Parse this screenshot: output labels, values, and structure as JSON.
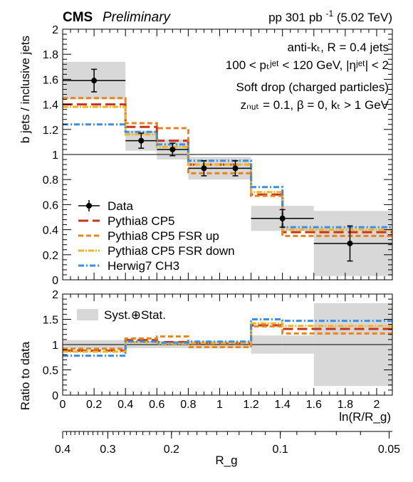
{
  "header": {
    "experiment": "CMS",
    "status": "Preliminary",
    "lumi_prefix": "pp 301 pb",
    "lumi_sup": "-1",
    "lumi_suffix": " (5.02 TeV)"
  },
  "annotations": {
    "jet_def": "anti-kₜ, R = 0.4 jets",
    "pt_cut": "100 < pₜʲᵉᵗ < 120 GeV, |ηʲᵉᵗ| < 2",
    "softdrop_title": "Soft drop (charged particles)",
    "softdrop_params": "zₙᵤₜ = 0.1, β = 0, kₜ > 1 GeV"
  },
  "styles": {
    "data": {
      "color": "#000000"
    },
    "cp5": {
      "color": "#c8341a",
      "dash": "14,6"
    },
    "fsr_up": {
      "color": "#e8841a",
      "dash": "7,4"
    },
    "fsr_down": {
      "color": "#f0b427",
      "dash": "8,2,2,2"
    },
    "herwig": {
      "color": "#3c8fe0",
      "dash": "8,3,2,3"
    },
    "band": "#d8d8d8"
  },
  "chart_data": [
    {
      "type": "histogram",
      "name": "main",
      "ylabel": "b jets / inclusive jets",
      "xlim": [
        0,
        2.1
      ],
      "ylim": [
        0,
        2
      ],
      "grid": false,
      "legend_position": "bottom-left",
      "x_ticks": [
        0,
        0.2,
        0.4,
        0.6,
        0.8,
        1,
        1.2,
        1.4,
        1.6,
        1.8,
        2
      ],
      "x_tick_labels": [
        "0",
        "0.2",
        "0.4",
        "0.6",
        "0.8",
        "1",
        "1.2",
        "1.4",
        "1.6",
        "1.8",
        "2"
      ],
      "y_ticks": [
        0,
        0.2,
        0.4,
        0.6,
        0.8,
        1,
        1.2,
        1.4,
        1.6,
        1.8,
        2
      ],
      "y_tick_labels": [
        "0",
        "0.2",
        "0.4",
        "0.6",
        "0.8",
        "1",
        "1.2",
        "1.4",
        "1.6",
        "1.8",
        "2"
      ],
      "bin_edges": [
        0,
        0.4,
        0.6,
        0.8,
        1.0,
        1.2,
        1.4,
        1.6,
        2.1
      ],
      "reference_line": 1,
      "data": {
        "name": "Data",
        "bins": [
          {
            "x0": 0,
            "x1": 0.4,
            "x": 0.2,
            "y": 1.59,
            "stat": 0.09,
            "syst": 0.15
          },
          {
            "x0": 0.4,
            "x1": 0.6,
            "x": 0.5,
            "y": 1.11,
            "stat": 0.06,
            "syst": 0.08
          },
          {
            "x0": 0.6,
            "x1": 0.8,
            "x": 0.7,
            "y": 1.04,
            "stat": 0.05,
            "syst": 0.08
          },
          {
            "x0": 0.8,
            "x1": 1.0,
            "x": 0.9,
            "y": 0.89,
            "stat": 0.06,
            "syst": 0.09
          },
          {
            "x0": 1.0,
            "x1": 1.2,
            "x": 1.1,
            "y": 0.89,
            "stat": 0.06,
            "syst": 0.09
          },
          {
            "x0": 1.2,
            "x1": 1.6,
            "x": 1.4,
            "y": 0.49,
            "stat": 0.07,
            "syst": 0.1
          },
          {
            "x0": 1.6,
            "x1": 2.1,
            "x": 1.83,
            "y": 0.29,
            "stat": 0.14,
            "syst": 0.26
          }
        ]
      },
      "series": [
        {
          "name": "Pythia8 CP5",
          "style": "cp5",
          "values": [
            1.4,
            1.22,
            1.11,
            0.92,
            0.92,
            0.68,
            0.38,
            0.38
          ]
        },
        {
          "name": "Pythia8 CP5 FSR up",
          "style": "fsr_up",
          "values": [
            1.45,
            1.25,
            1.21,
            0.85,
            0.85,
            0.67,
            0.35,
            0.35
          ]
        },
        {
          "name": "Pythia8 CP5 FSR down",
          "style": "fsr_down",
          "values": [
            1.38,
            1.16,
            1.06,
            0.92,
            0.92,
            0.7,
            0.4,
            0.4
          ]
        },
        {
          "name": "Herwig7 CH3",
          "style": "herwig",
          "values": [
            1.24,
            1.18,
            1.08,
            0.95,
            0.95,
            0.74,
            0.42,
            0.42
          ]
        }
      ]
    },
    {
      "type": "histogram",
      "name": "ratio",
      "ylabel": "Ratio to data",
      "xlabel": "ln(R/R_g)",
      "xlim": [
        0,
        2.1
      ],
      "ylim": [
        0,
        2
      ],
      "y_ticks": [
        0,
        0.5,
        1,
        1.5,
        2
      ],
      "y_tick_labels": [
        "0",
        "0.5",
        "1",
        "1.5",
        "2"
      ],
      "x_ticks": [
        0,
        0.2,
        0.4,
        0.6,
        0.8,
        1,
        1.2,
        1.4,
        1.6,
        1.8,
        2
      ],
      "x_tick_labels": [
        "0",
        "0.2",
        "0.4",
        "0.6",
        "0.8",
        "1",
        "1.2",
        "1.4",
        "1.6",
        "1.8",
        "2"
      ],
      "bin_edges": [
        0,
        0.4,
        0.6,
        0.8,
        1.0,
        1.2,
        1.4,
        1.6,
        2.1
      ],
      "reference_line": 1,
      "band": {
        "name": "Syst.⊕Stat.",
        "ranges": [
          [
            0.91,
            1.09
          ],
          [
            0.93,
            1.07
          ],
          [
            0.93,
            1.07
          ],
          [
            0.93,
            1.07
          ],
          [
            0.93,
            1.07
          ],
          [
            0.82,
            1.18
          ],
          [
            0.82,
            1.18
          ],
          [
            0.18,
            1.82
          ]
        ]
      },
      "series": [
        {
          "name": "Pythia8 CP5",
          "style": "cp5",
          "values": [
            0.88,
            1.09,
            1.05,
            1.02,
            1.02,
            1.38,
            1.31,
            1.31
          ]
        },
        {
          "name": "Pythia8 CP5 FSR up",
          "style": "fsr_up",
          "values": [
            0.92,
            1.12,
            1.16,
            0.95,
            0.95,
            1.36,
            1.22,
            1.22
          ]
        },
        {
          "name": "Pythia8 CP5 FSR down",
          "style": "fsr_down",
          "values": [
            0.86,
            1.05,
            1.02,
            1.03,
            1.03,
            1.42,
            1.37,
            1.37
          ]
        },
        {
          "name": "Herwig7 CH3",
          "style": "herwig",
          "values": [
            0.78,
            1.06,
            1.04,
            1.06,
            1.06,
            1.5,
            1.47,
            1.47
          ]
        }
      ]
    },
    {
      "type": "axis",
      "name": "rg_axis",
      "xlabel": "R_g",
      "ticks": [
        {
          "label": "0.4",
          "value": 0.4
        },
        {
          "label": "0.3",
          "value": 0.3
        },
        {
          "label": "0.2",
          "value": 0.2
        },
        {
          "label": "0.1",
          "value": 0.1
        },
        {
          "label": "0.05",
          "value": 0.05
        }
      ],
      "relation": "ln(R/R_g) with R = 0.4"
    }
  ]
}
